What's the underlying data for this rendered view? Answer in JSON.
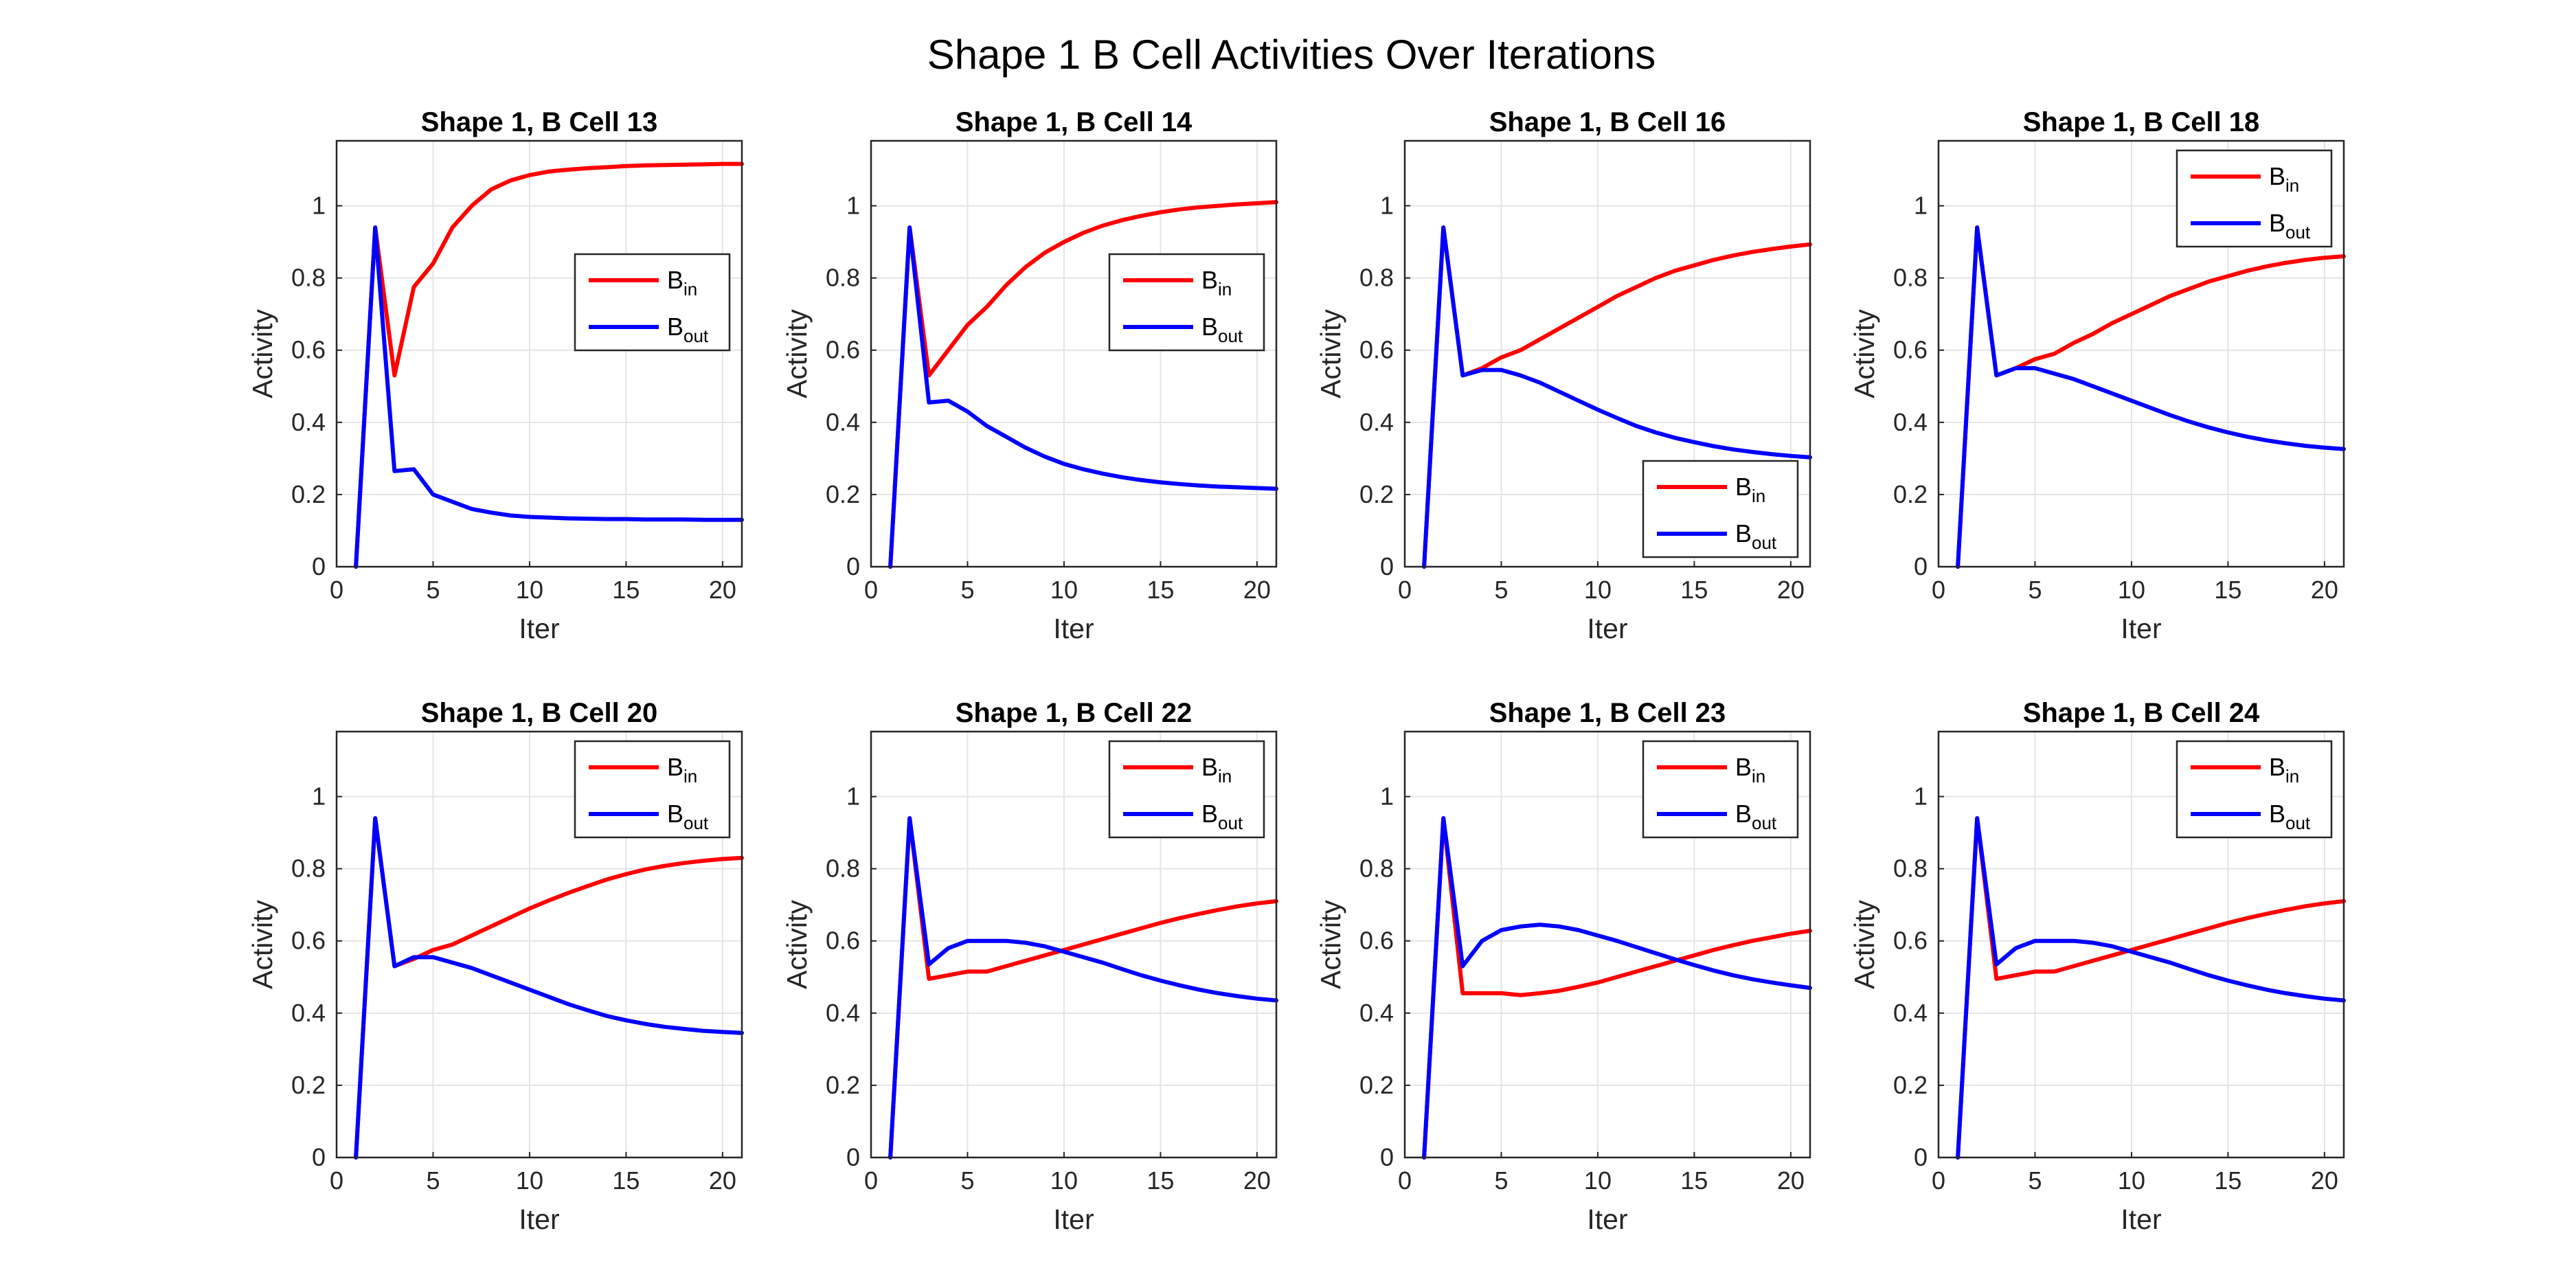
{
  "figure": {
    "suptitle": "Shape 1 B Cell Activities Over Iterations"
  },
  "colors": {
    "bin": "#ff0000",
    "bout": "#0000ff",
    "grid": "#e4e4e4",
    "axis": "#262626"
  },
  "chart_data": [
    {
      "type": "line",
      "title": "Shape 1, B Cell 13",
      "xlabel": "Iter",
      "ylabel": "Activity",
      "xlim": [
        0,
        21
      ],
      "ylim": [
        0,
        1.18
      ],
      "xticks": [
        0,
        5,
        10,
        15,
        20
      ],
      "yticks": [
        0,
        0.2,
        0.4,
        0.6,
        0.8,
        1
      ],
      "grid": true,
      "legend_position": "middle-right",
      "legend": [
        {
          "main": "B",
          "sub": "in"
        },
        {
          "main": "B",
          "sub": "out"
        }
      ],
      "x": [
        1,
        2,
        3,
        4,
        5,
        6,
        7,
        8,
        9,
        10,
        11,
        12,
        13,
        14,
        15,
        16,
        17,
        18,
        19,
        20,
        21
      ],
      "series": [
        {
          "key": "bin",
          "values": [
            0,
            0.94,
            0.53,
            0.775,
            0.84,
            0.94,
            1.0,
            1.045,
            1.07,
            1.085,
            1.095,
            1.1,
            1.104,
            1.107,
            1.11,
            1.112,
            1.113,
            1.114,
            1.115,
            1.116,
            1.116
          ]
        },
        {
          "key": "bout",
          "values": [
            0,
            0.94,
            0.265,
            0.27,
            0.2,
            0.18,
            0.16,
            0.15,
            0.142,
            0.138,
            0.136,
            0.134,
            0.133,
            0.132,
            0.132,
            0.131,
            0.131,
            0.131,
            0.13,
            0.13,
            0.13
          ]
        }
      ]
    },
    {
      "type": "line",
      "title": "Shape 1, B Cell 14",
      "xlabel": "Iter",
      "ylabel": "Activity",
      "xlim": [
        0,
        21
      ],
      "ylim": [
        0,
        1.18
      ],
      "xticks": [
        0,
        5,
        10,
        15,
        20
      ],
      "yticks": [
        0,
        0.2,
        0.4,
        0.6,
        0.8,
        1
      ],
      "grid": true,
      "legend_position": "middle-right",
      "legend": [
        {
          "main": "B",
          "sub": "in"
        },
        {
          "main": "B",
          "sub": "out"
        }
      ],
      "x": [
        1,
        2,
        3,
        4,
        5,
        6,
        7,
        8,
        9,
        10,
        11,
        12,
        13,
        14,
        15,
        16,
        17,
        18,
        19,
        20,
        21
      ],
      "series": [
        {
          "key": "bin",
          "values": [
            0,
            0.94,
            0.53,
            0.6,
            0.67,
            0.72,
            0.78,
            0.83,
            0.87,
            0.9,
            0.925,
            0.945,
            0.96,
            0.972,
            0.982,
            0.99,
            0.996,
            1.0,
            1.004,
            1.007,
            1.01
          ]
        },
        {
          "key": "bout",
          "values": [
            0,
            0.94,
            0.455,
            0.46,
            0.43,
            0.39,
            0.36,
            0.33,
            0.305,
            0.285,
            0.27,
            0.258,
            0.248,
            0.24,
            0.234,
            0.229,
            0.225,
            0.222,
            0.22,
            0.218,
            0.216
          ]
        }
      ]
    },
    {
      "type": "line",
      "title": "Shape 1, B Cell 16",
      "xlabel": "Iter",
      "ylabel": "Activity",
      "xlim": [
        0,
        21
      ],
      "ylim": [
        0,
        1.18
      ],
      "xticks": [
        0,
        5,
        10,
        15,
        20
      ],
      "yticks": [
        0,
        0.2,
        0.4,
        0.6,
        0.8,
        1
      ],
      "grid": true,
      "legend_position": "bottom-right",
      "legend": [
        {
          "main": "B",
          "sub": "in"
        },
        {
          "main": "B",
          "sub": "out"
        }
      ],
      "x": [
        1,
        2,
        3,
        4,
        5,
        6,
        7,
        8,
        9,
        10,
        11,
        12,
        13,
        14,
        15,
        16,
        17,
        18,
        19,
        20,
        21
      ],
      "series": [
        {
          "key": "bin",
          "values": [
            0,
            0.94,
            0.53,
            0.55,
            0.58,
            0.6,
            0.63,
            0.66,
            0.69,
            0.72,
            0.75,
            0.775,
            0.8,
            0.82,
            0.835,
            0.85,
            0.862,
            0.872,
            0.88,
            0.887,
            0.893
          ]
        },
        {
          "key": "bout",
          "values": [
            0,
            0.94,
            0.53,
            0.545,
            0.545,
            0.53,
            0.51,
            0.485,
            0.46,
            0.435,
            0.412,
            0.39,
            0.372,
            0.357,
            0.345,
            0.334,
            0.325,
            0.318,
            0.312,
            0.307,
            0.303
          ]
        }
      ]
    },
    {
      "type": "line",
      "title": "Shape 1, B Cell 18",
      "xlabel": "Iter",
      "ylabel": "Activity",
      "xlim": [
        0,
        21
      ],
      "ylim": [
        0,
        1.18
      ],
      "xticks": [
        0,
        5,
        10,
        15,
        20
      ],
      "yticks": [
        0,
        0.2,
        0.4,
        0.6,
        0.8,
        1
      ],
      "grid": true,
      "legend_position": "top-right",
      "legend": [
        {
          "main": "B",
          "sub": "in"
        },
        {
          "main": "B",
          "sub": "out"
        }
      ],
      "x": [
        1,
        2,
        3,
        4,
        5,
        6,
        7,
        8,
        9,
        10,
        11,
        12,
        13,
        14,
        15,
        16,
        17,
        18,
        19,
        20,
        21
      ],
      "series": [
        {
          "key": "bin",
          "values": [
            0,
            0.94,
            0.53,
            0.55,
            0.575,
            0.59,
            0.62,
            0.645,
            0.675,
            0.7,
            0.725,
            0.75,
            0.77,
            0.79,
            0.805,
            0.82,
            0.832,
            0.842,
            0.85,
            0.856,
            0.86
          ]
        },
        {
          "key": "bout",
          "values": [
            0,
            0.94,
            0.53,
            0.55,
            0.55,
            0.535,
            0.52,
            0.5,
            0.48,
            0.46,
            0.44,
            0.42,
            0.402,
            0.386,
            0.372,
            0.36,
            0.35,
            0.342,
            0.335,
            0.33,
            0.326
          ]
        }
      ]
    },
    {
      "type": "line",
      "title": "Shape 1, B Cell 20",
      "xlabel": "Iter",
      "ylabel": "Activity",
      "xlim": [
        0,
        21
      ],
      "ylim": [
        0,
        1.18
      ],
      "xticks": [
        0,
        5,
        10,
        15,
        20
      ],
      "yticks": [
        0,
        0.2,
        0.4,
        0.6,
        0.8,
        1
      ],
      "grid": true,
      "legend_position": "top-right",
      "legend": [
        {
          "main": "B",
          "sub": "in"
        },
        {
          "main": "B",
          "sub": "out"
        }
      ],
      "x": [
        1,
        2,
        3,
        4,
        5,
        6,
        7,
        8,
        9,
        10,
        11,
        12,
        13,
        14,
        15,
        16,
        17,
        18,
        19,
        20,
        21
      ],
      "series": [
        {
          "key": "bin",
          "values": [
            0,
            0.94,
            0.53,
            0.55,
            0.575,
            0.59,
            0.615,
            0.64,
            0.665,
            0.69,
            0.712,
            0.733,
            0.752,
            0.77,
            0.785,
            0.798,
            0.808,
            0.816,
            0.822,
            0.827,
            0.83
          ]
        },
        {
          "key": "bout",
          "values": [
            0,
            0.94,
            0.53,
            0.555,
            0.555,
            0.54,
            0.525,
            0.505,
            0.485,
            0.465,
            0.445,
            0.425,
            0.408,
            0.392,
            0.38,
            0.37,
            0.362,
            0.356,
            0.351,
            0.348,
            0.345
          ]
        }
      ]
    },
    {
      "type": "line",
      "title": "Shape 1, B Cell 22",
      "xlabel": "Iter",
      "ylabel": "Activity",
      "xlim": [
        0,
        21
      ],
      "ylim": [
        0,
        1.18
      ],
      "xticks": [
        0,
        5,
        10,
        15,
        20
      ],
      "yticks": [
        0,
        0.2,
        0.4,
        0.6,
        0.8,
        1
      ],
      "grid": true,
      "legend_position": "top-right",
      "legend": [
        {
          "main": "B",
          "sub": "in"
        },
        {
          "main": "B",
          "sub": "out"
        }
      ],
      "x": [
        1,
        2,
        3,
        4,
        5,
        6,
        7,
        8,
        9,
        10,
        11,
        12,
        13,
        14,
        15,
        16,
        17,
        18,
        19,
        20,
        21
      ],
      "series": [
        {
          "key": "bin",
          "values": [
            0,
            0.94,
            0.495,
            0.505,
            0.515,
            0.515,
            0.53,
            0.545,
            0.56,
            0.575,
            0.59,
            0.605,
            0.62,
            0.635,
            0.65,
            0.663,
            0.675,
            0.686,
            0.696,
            0.704,
            0.71
          ]
        },
        {
          "key": "bout",
          "values": [
            0,
            0.94,
            0.535,
            0.58,
            0.6,
            0.6,
            0.6,
            0.595,
            0.585,
            0.57,
            0.555,
            0.54,
            0.522,
            0.505,
            0.49,
            0.477,
            0.465,
            0.455,
            0.447,
            0.44,
            0.435
          ]
        }
      ]
    },
    {
      "type": "line",
      "title": "Shape 1, B Cell 23",
      "xlabel": "Iter",
      "ylabel": "Activity",
      "xlim": [
        0,
        21
      ],
      "ylim": [
        0,
        1.18
      ],
      "xticks": [
        0,
        5,
        10,
        15,
        20
      ],
      "yticks": [
        0,
        0.2,
        0.4,
        0.6,
        0.8,
        1
      ],
      "grid": true,
      "legend_position": "top-right",
      "legend": [
        {
          "main": "B",
          "sub": "in"
        },
        {
          "main": "B",
          "sub": "out"
        }
      ],
      "x": [
        1,
        2,
        3,
        4,
        5,
        6,
        7,
        8,
        9,
        10,
        11,
        12,
        13,
        14,
        15,
        16,
        17,
        18,
        19,
        20,
        21
      ],
      "series": [
        {
          "key": "bin",
          "values": [
            0,
            0.94,
            0.455,
            0.455,
            0.455,
            0.45,
            0.455,
            0.462,
            0.473,
            0.485,
            0.5,
            0.515,
            0.53,
            0.545,
            0.56,
            0.575,
            0.588,
            0.6,
            0.61,
            0.62,
            0.628
          ]
        },
        {
          "key": "bout",
          "values": [
            0,
            0.94,
            0.53,
            0.6,
            0.63,
            0.64,
            0.645,
            0.64,
            0.63,
            0.615,
            0.6,
            0.583,
            0.566,
            0.549,
            0.533,
            0.518,
            0.505,
            0.494,
            0.485,
            0.477,
            0.47
          ]
        }
      ]
    },
    {
      "type": "line",
      "title": "Shape 1, B Cell 24",
      "xlabel": "Iter",
      "ylabel": "Activity",
      "xlim": [
        0,
        21
      ],
      "ylim": [
        0,
        1.18
      ],
      "xticks": [
        0,
        5,
        10,
        15,
        20
      ],
      "yticks": [
        0,
        0.2,
        0.4,
        0.6,
        0.8,
        1
      ],
      "grid": true,
      "legend_position": "top-right",
      "legend": [
        {
          "main": "B",
          "sub": "in"
        },
        {
          "main": "B",
          "sub": "out"
        }
      ],
      "x": [
        1,
        2,
        3,
        4,
        5,
        6,
        7,
        8,
        9,
        10,
        11,
        12,
        13,
        14,
        15,
        16,
        17,
        18,
        19,
        20,
        21
      ],
      "series": [
        {
          "key": "bin",
          "values": [
            0,
            0.94,
            0.495,
            0.505,
            0.515,
            0.515,
            0.53,
            0.545,
            0.56,
            0.575,
            0.59,
            0.605,
            0.62,
            0.635,
            0.65,
            0.663,
            0.675,
            0.686,
            0.696,
            0.704,
            0.71
          ]
        },
        {
          "key": "bout",
          "values": [
            0,
            0.94,
            0.535,
            0.58,
            0.6,
            0.6,
            0.6,
            0.595,
            0.585,
            0.57,
            0.555,
            0.54,
            0.522,
            0.505,
            0.49,
            0.477,
            0.465,
            0.455,
            0.447,
            0.44,
            0.435
          ]
        }
      ]
    }
  ]
}
